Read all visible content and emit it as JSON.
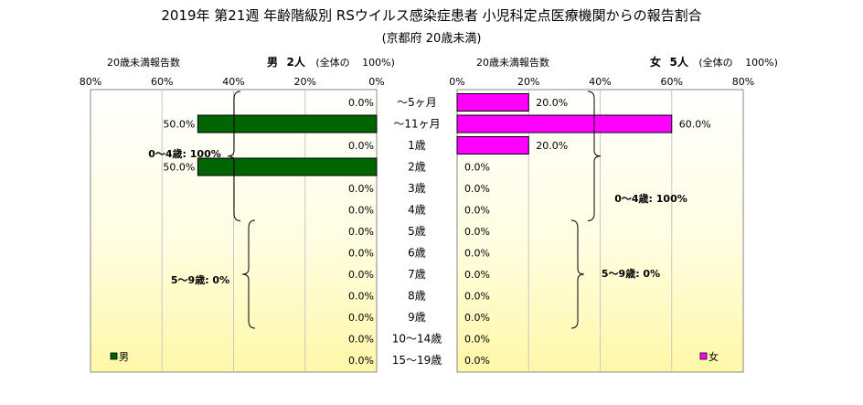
{
  "title": "2019年 第21週 年齢階級別 RSウイルス感染症患者 小児科定点医療機関からの報告割合",
  "subtitle": "(京都府 20歳未満)",
  "male": {
    "section_label": "20歳未満報告数",
    "sex": "男",
    "count": "2人",
    "total_label": "(全体の",
    "total_pct": "100%)",
    "legend": "男",
    "color": "#006400",
    "group_labels": [
      "0～4歳: 100%",
      "5～9歳: 0%"
    ]
  },
  "female": {
    "section_label": "20歳未満報告数",
    "sex": "女",
    "count": "5人",
    "total_label": "(全体の",
    "total_pct": "100%)",
    "legend": "女",
    "color": "#ff00ff",
    "group_labels": [
      "0～4歳: 100%",
      "5～9歳: 0%"
    ]
  },
  "chart_data": {
    "type": "bar",
    "orientation": "horizontal",
    "categories": [
      "～5ヶ月",
      "～11ヶ月",
      "1歳",
      "2歳",
      "3歳",
      "4歳",
      "5歳",
      "6歳",
      "7歳",
      "8歳",
      "9歳",
      "10～14歳",
      "15～19歳"
    ],
    "series": [
      {
        "name": "男",
        "values": [
          0,
          50,
          0,
          50,
          0,
          0,
          0,
          0,
          0,
          0,
          0,
          0,
          0
        ],
        "labels": [
          "0.0%",
          "50.0%",
          "0.0%",
          "50.0%",
          "0.0%",
          "0.0%",
          "0.0%",
          "0.0%",
          "0.0%",
          "0.0%",
          "0.0%",
          "0.0%",
          "0.0%"
        ]
      },
      {
        "name": "女",
        "values": [
          20,
          60,
          20,
          0,
          0,
          0,
          0,
          0,
          0,
          0,
          0,
          0,
          0
        ],
        "labels": [
          "20.0%",
          "60.0%",
          "20.0%",
          "0.0%",
          "0.0%",
          "0.0%",
          "0.0%",
          "0.0%",
          "0.0%",
          "0.0%",
          "0.0%",
          "0.0%",
          "0.0%"
        ]
      }
    ],
    "xlim": [
      0,
      80
    ],
    "male_ticks": [
      "80%",
      "60%",
      "40%",
      "20%",
      "0%"
    ],
    "female_ticks": [
      "0%",
      "20%",
      "40%",
      "60%",
      "80%"
    ],
    "grid": true,
    "legend_position": "bottom-left / bottom-right"
  }
}
